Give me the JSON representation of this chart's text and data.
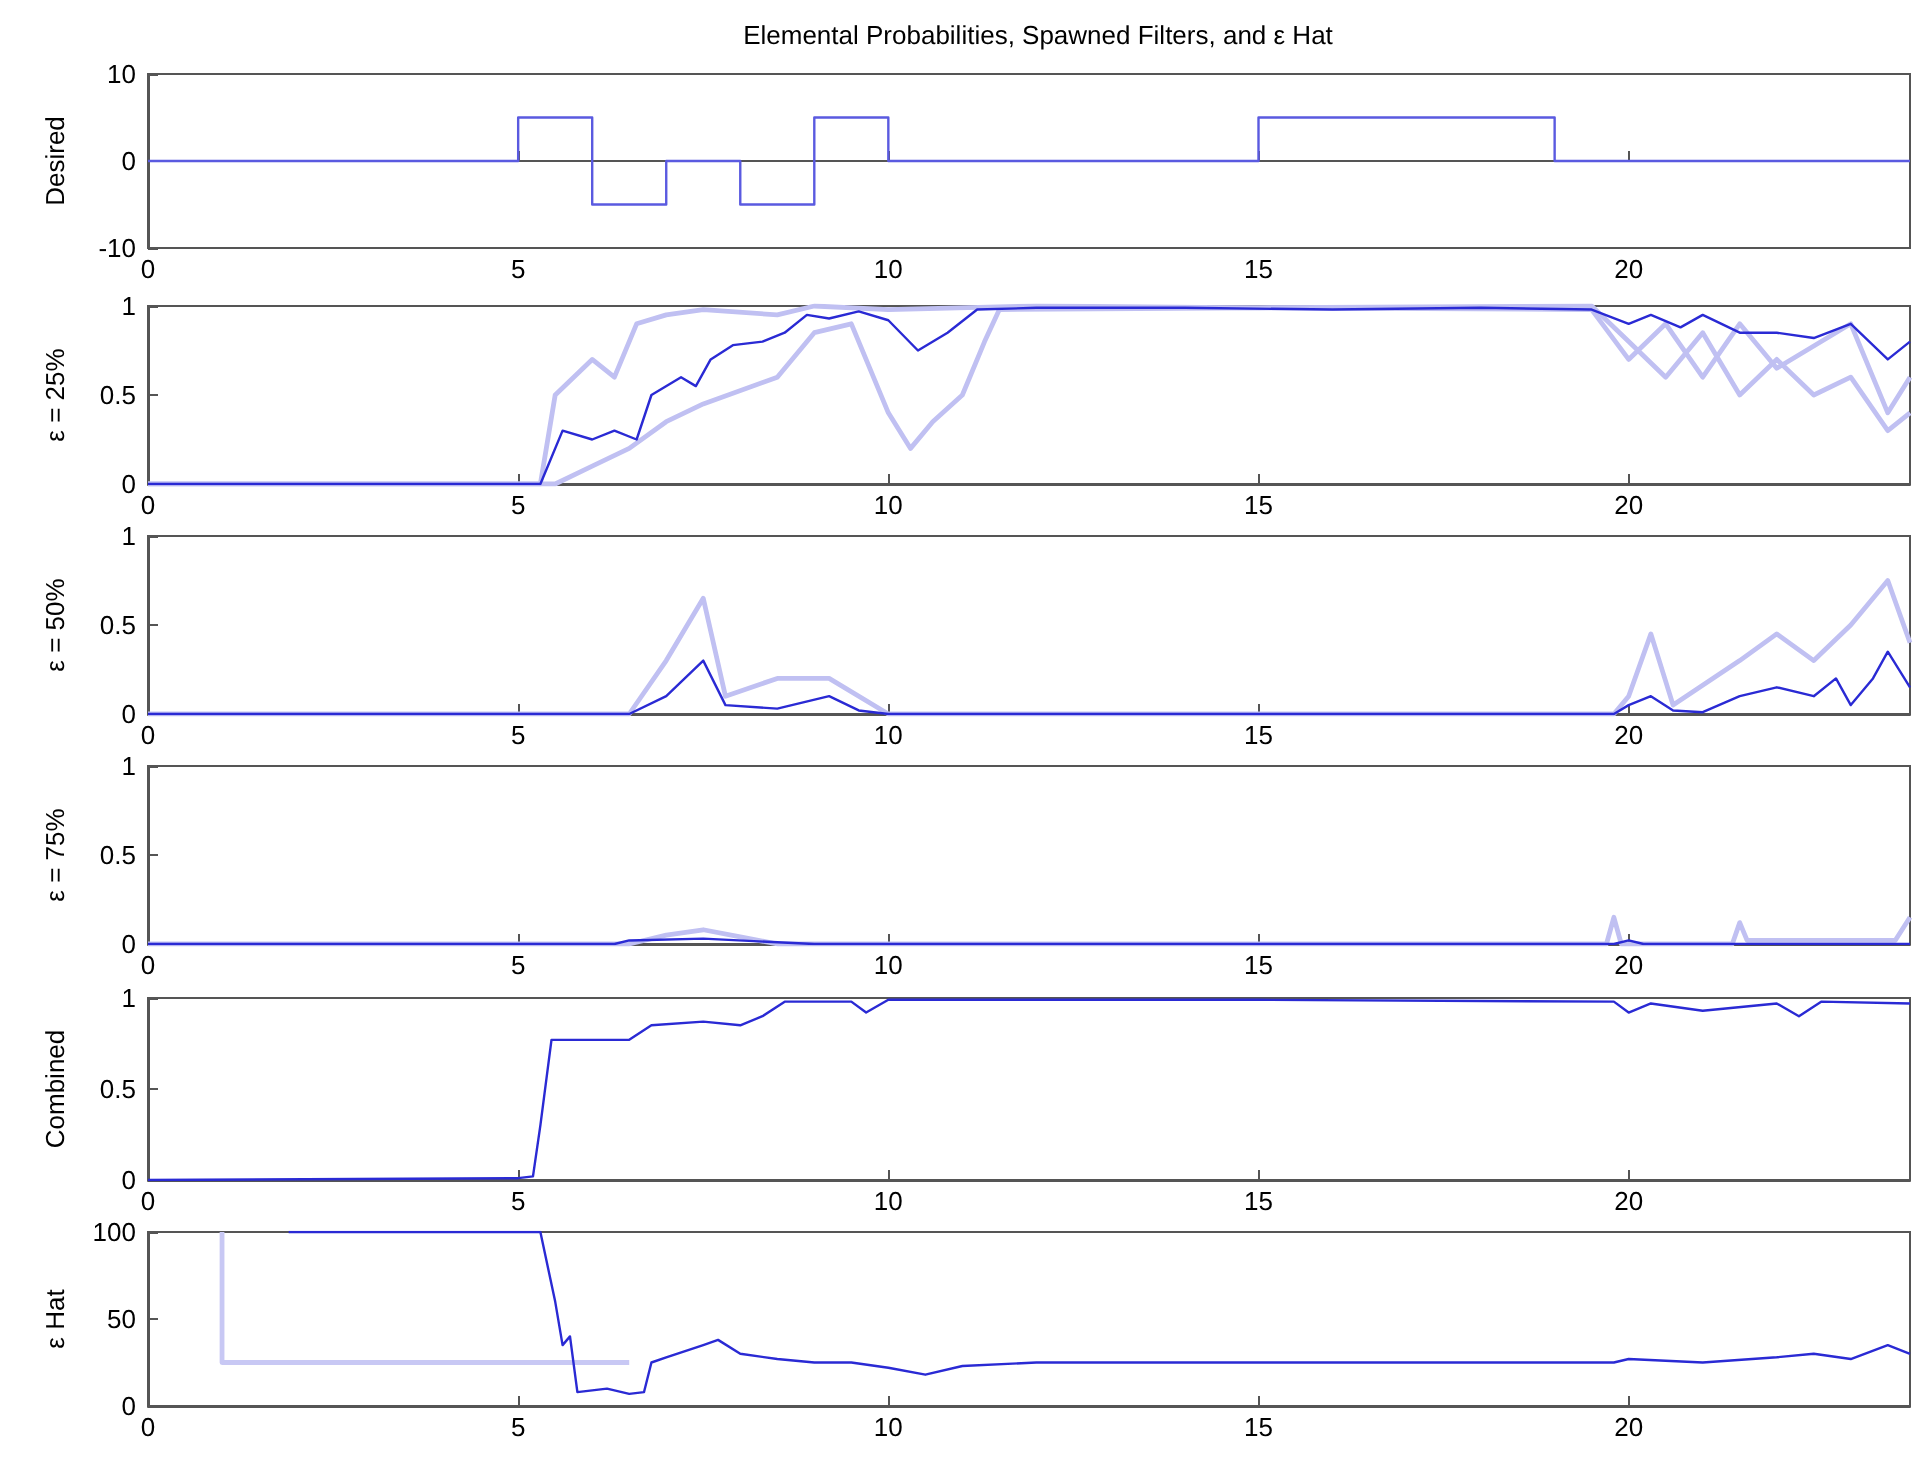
{
  "chart_data": [
    {
      "type": "step",
      "title": "Elemental Probabilities, Spawned Filters, and ε Hat",
      "ylabel": "Desired",
      "xlim": [
        0,
        23.8
      ],
      "xticks": [
        0,
        5,
        10,
        15,
        20
      ],
      "ylim": [
        -10,
        10
      ],
      "yticks": [
        -10,
        0,
        10
      ],
      "series": [
        {
          "color": "#5a5ae0",
          "x": [
            0,
            5,
            6,
            7,
            8,
            9,
            10,
            15,
            19,
            23.8
          ],
          "values": [
            0,
            5,
            -5,
            0,
            -5,
            5,
            0,
            5,
            0,
            0
          ]
        }
      ]
    },
    {
      "type": "line",
      "ylabel": "ε = 25%",
      "xlim": [
        0,
        23.8
      ],
      "xticks": [
        0,
        5,
        10,
        15,
        20
      ],
      "ylim": [
        0,
        1
      ],
      "yticks": [
        0,
        0.5,
        1
      ],
      "series": [
        {
          "color": "#c0c0f2",
          "x": [
            0,
            5.3,
            5.5,
            6,
            6.3,
            6.6,
            7,
            7.5,
            8.5,
            9,
            10,
            12,
            15,
            19.5,
            20,
            20.5,
            21,
            21.5,
            22,
            23,
            23.5,
            23.8
          ],
          "values": [
            0,
            0,
            0.5,
            0.7,
            0.6,
            0.9,
            0.95,
            0.98,
            0.95,
            1,
            0.98,
            1,
            0.99,
            0.98,
            0.7,
            0.9,
            0.6,
            0.9,
            0.65,
            0.9,
            0.4,
            0.6
          ]
        },
        {
          "color": "#c0c0f2",
          "x": [
            0,
            5.5,
            6,
            6.5,
            7,
            7.5,
            8.5,
            9,
            9.5,
            10,
            10.3,
            10.6,
            11,
            11.3,
            11.5,
            15,
            19.5,
            20,
            20.5,
            21,
            21.5,
            22,
            22.5,
            23,
            23.5,
            23.8
          ],
          "values": [
            0,
            0,
            0.1,
            0.2,
            0.35,
            0.45,
            0.6,
            0.85,
            0.9,
            0.4,
            0.2,
            0.35,
            0.5,
            0.8,
            0.98,
            0.99,
            1,
            0.8,
            0.6,
            0.85,
            0.5,
            0.7,
            0.5,
            0.6,
            0.3,
            0.4
          ]
        },
        {
          "color": "#2a2ad4",
          "x": [
            0,
            5.3,
            5.4,
            5.6,
            6,
            6.3,
            6.6,
            6.8,
            7.2,
            7.4,
            7.6,
            7.9,
            8.3,
            8.6,
            8.9,
            9.2,
            9.6,
            10,
            10.4,
            10.8,
            11.2,
            12,
            14,
            16,
            18,
            19.5,
            20,
            20.3,
            20.7,
            21,
            21.5,
            22,
            22.5,
            23,
            23.5,
            23.8
          ],
          "values": [
            0,
            0,
            0.1,
            0.3,
            0.25,
            0.3,
            0.25,
            0.5,
            0.6,
            0.55,
            0.7,
            0.78,
            0.8,
            0.85,
            0.95,
            0.93,
            0.97,
            0.92,
            0.75,
            0.85,
            0.98,
            0.99,
            0.99,
            0.98,
            0.99,
            0.98,
            0.9,
            0.95,
            0.88,
            0.95,
            0.85,
            0.85,
            0.82,
            0.9,
            0.7,
            0.8
          ]
        }
      ]
    },
    {
      "type": "line",
      "ylabel": "ε = 50%",
      "xlim": [
        0,
        23.8
      ],
      "xticks": [
        0,
        5,
        10,
        15,
        20
      ],
      "ylim": [
        0,
        1
      ],
      "yticks": [
        0,
        0.5,
        1
      ],
      "series": [
        {
          "color": "#c0c0f2",
          "x": [
            0,
            6.5,
            7,
            7.5,
            7.8,
            8.5,
            9.2,
            10,
            19.8,
            20,
            20.3,
            20.6,
            21.5,
            22,
            22.5,
            23,
            23.5,
            23.8
          ],
          "values": [
            0,
            0,
            0.3,
            0.65,
            0.1,
            0.2,
            0.2,
            0,
            0,
            0.1,
            0.45,
            0.05,
            0.3,
            0.45,
            0.3,
            0.5,
            0.75,
            0.4
          ]
        },
        {
          "color": "#2a2ad4",
          "x": [
            0,
            6.5,
            7,
            7.5,
            7.8,
            8.5,
            9.2,
            9.6,
            10,
            19.8,
            20,
            20.3,
            20.6,
            21,
            21.5,
            22,
            22.5,
            22.8,
            23,
            23.3,
            23.5,
            23.8
          ],
          "values": [
            0,
            0,
            0.1,
            0.3,
            0.05,
            0.03,
            0.1,
            0.02,
            0,
            0,
            0.05,
            0.1,
            0.02,
            0.01,
            0.1,
            0.15,
            0.1,
            0.2,
            0.05,
            0.2,
            0.35,
            0.15
          ]
        }
      ]
    },
    {
      "type": "line",
      "ylabel": "ε = 75%",
      "xlim": [
        0,
        23.8
      ],
      "xticks": [
        0,
        5,
        10,
        15,
        20
      ],
      "ylim": [
        0,
        1
      ],
      "yticks": [
        0,
        0.5,
        1
      ],
      "series": [
        {
          "color": "#c0c0f2",
          "x": [
            0,
            6.5,
            7,
            7.5,
            8,
            8.5,
            19.7,
            19.8,
            19.9,
            21.4,
            21.5,
            21.6,
            23.6,
            23.8
          ],
          "values": [
            0,
            0,
            0.05,
            0.08,
            0.04,
            0,
            0,
            0.15,
            0,
            0,
            0.12,
            0.02,
            0.02,
            0.15
          ]
        },
        {
          "color": "#2a2ad4",
          "x": [
            0,
            6.3,
            6.5,
            7.5,
            8.5,
            9,
            19.8,
            20,
            20.2,
            23.8
          ],
          "values": [
            0,
            0,
            0.02,
            0.03,
            0.01,
            0,
            0,
            0.02,
            0,
            0
          ]
        }
      ]
    },
    {
      "type": "line",
      "ylabel": "Combined",
      "xlim": [
        0,
        23.8
      ],
      "xticks": [
        0,
        5,
        10,
        15,
        20
      ],
      "ylim": [
        0,
        1
      ],
      "yticks": [
        0,
        0.5,
        1
      ],
      "series": [
        {
          "color": "#2a2ad4",
          "x": [
            0,
            5,
            5.2,
            5.3,
            5.45,
            6.5,
            6.8,
            7.5,
            8,
            8.3,
            8.6,
            9.5,
            9.7,
            10,
            15,
            19.8,
            20,
            20.3,
            21,
            22,
            22.3,
            22.6,
            23.8
          ],
          "values": [
            0,
            0.01,
            0.02,
            0.3,
            0.77,
            0.77,
            0.85,
            0.87,
            0.85,
            0.9,
            0.98,
            0.98,
            0.92,
            0.99,
            0.99,
            0.98,
            0.92,
            0.97,
            0.93,
            0.97,
            0.9,
            0.98,
            0.97
          ]
        }
      ]
    },
    {
      "type": "line",
      "ylabel": "ε Hat",
      "xlim": [
        0,
        23.8
      ],
      "xticks": [
        0,
        5,
        10,
        15,
        20
      ],
      "ylim": [
        0,
        100
      ],
      "yticks": [
        0,
        50,
        100
      ],
      "series": [
        {
          "color": "#c8c8f4",
          "x": [
            1,
            1,
            6.5
          ],
          "values": [
            100,
            25,
            25
          ]
        },
        {
          "color": "#2a2ad4",
          "x": [
            1.9,
            5.3,
            5.5,
            5.6,
            5.7,
            5.8,
            6.2,
            6.5,
            6.7,
            6.8,
            7,
            7.5,
            7.7,
            8,
            8.5,
            9,
            9.5,
            10,
            10.5,
            11,
            12,
            15,
            19.8,
            20,
            21,
            22,
            22.5,
            23,
            23.5,
            23.8
          ],
          "values": [
            100,
            100,
            60,
            35,
            40,
            8,
            10,
            7,
            8,
            25,
            28,
            35,
            38,
            30,
            27,
            25,
            25,
            22,
            18,
            23,
            25,
            25,
            25,
            27,
            25,
            28,
            30,
            27,
            35,
            30
          ]
        }
      ]
    }
  ]
}
